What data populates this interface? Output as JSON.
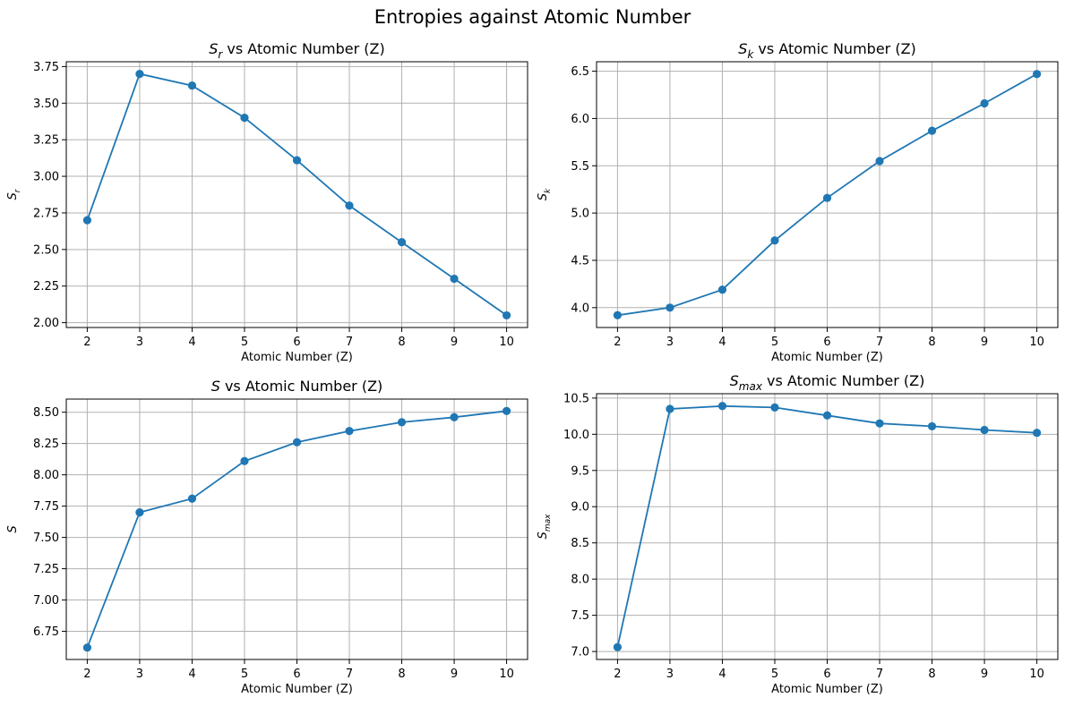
{
  "figure": {
    "title": "Entropies against Atomic Number"
  },
  "colors": {
    "series": "#1f77b4",
    "grid": "#b0b0b0"
  },
  "chart_data": [
    {
      "type": "line",
      "title_sym": "S",
      "title_sub": "r",
      "title_rest": " vs Atomic Number (Z)",
      "xlabel": "Atomic Number (Z)",
      "ylabel_sym": "S",
      "ylabel_sub": "r",
      "x": [
        2,
        3,
        4,
        5,
        6,
        7,
        8,
        9,
        10
      ],
      "y": [
        2.7,
        3.7,
        3.62,
        3.4,
        3.11,
        2.8,
        2.55,
        2.3,
        2.05
      ],
      "xticks": [
        2,
        3,
        4,
        5,
        6,
        7,
        8,
        9,
        10
      ],
      "xticklabels": [
        "2",
        "3",
        "4",
        "5",
        "6",
        "7",
        "8",
        "9",
        "10"
      ],
      "yticks": [
        2.0,
        2.25,
        2.5,
        2.75,
        3.0,
        3.25,
        3.5,
        3.75
      ],
      "yticklabels": [
        "2.00",
        "2.25",
        "2.50",
        "2.75",
        "3.00",
        "3.25",
        "3.50",
        "3.75"
      ],
      "xlim": [
        1.6,
        10.4
      ],
      "ylim": [
        1.967,
        3.783
      ],
      "grid": true,
      "marker": "circle"
    },
    {
      "type": "line",
      "title_sym": "S",
      "title_sub": "k",
      "title_rest": " vs Atomic Number (Z)",
      "xlabel": "Atomic Number (Z)",
      "ylabel_sym": "S",
      "ylabel_sub": "k",
      "x": [
        2,
        3,
        4,
        5,
        6,
        7,
        8,
        9,
        10
      ],
      "y": [
        3.92,
        4.0,
        4.19,
        4.71,
        5.16,
        5.55,
        5.87,
        6.16,
        6.47
      ],
      "xticks": [
        2,
        3,
        4,
        5,
        6,
        7,
        8,
        9,
        10
      ],
      "xticklabels": [
        "2",
        "3",
        "4",
        "5",
        "6",
        "7",
        "8",
        "9",
        "10"
      ],
      "yticks": [
        4.0,
        4.5,
        5.0,
        5.5,
        6.0,
        6.5
      ],
      "yticklabels": [
        "4.0",
        "4.5",
        "5.0",
        "5.5",
        "6.0",
        "6.5"
      ],
      "xlim": [
        1.6,
        10.4
      ],
      "ylim": [
        3.79,
        6.6
      ],
      "grid": true,
      "marker": "circle"
    },
    {
      "type": "line",
      "title_sym": "S",
      "title_sub": "",
      "title_rest": " vs Atomic Number (Z)",
      "xlabel": "Atomic Number (Z)",
      "ylabel_sym": "S",
      "ylabel_sub": "",
      "x": [
        2,
        3,
        4,
        5,
        6,
        7,
        8,
        9,
        10
      ],
      "y": [
        6.62,
        7.7,
        7.81,
        8.11,
        8.26,
        8.35,
        8.42,
        8.46,
        8.51
      ],
      "xticks": [
        2,
        3,
        4,
        5,
        6,
        7,
        8,
        9,
        10
      ],
      "xticklabels": [
        "2",
        "3",
        "4",
        "5",
        "6",
        "7",
        "8",
        "9",
        "10"
      ],
      "yticks": [
        6.75,
        7.0,
        7.25,
        7.5,
        7.75,
        8.0,
        8.25,
        8.5
      ],
      "yticklabels": [
        "6.75",
        "7.00",
        "7.25",
        "7.50",
        "7.75",
        "8.00",
        "8.25",
        "8.50"
      ],
      "xlim": [
        1.6,
        10.4
      ],
      "ylim": [
        6.525,
        8.605
      ],
      "grid": true,
      "marker": "circle"
    },
    {
      "type": "line",
      "title_sym": "S",
      "title_sub": "max",
      "title_rest": " vs Atomic Number (Z)",
      "xlabel": "Atomic Number (Z)",
      "ylabel_sym": "S",
      "ylabel_sub": "max",
      "x": [
        2,
        3,
        4,
        5,
        6,
        7,
        8,
        9,
        10
      ],
      "y": [
        7.06,
        10.35,
        10.39,
        10.37,
        10.26,
        10.15,
        10.11,
        10.06,
        10.02
      ],
      "xticks": [
        2,
        3,
        4,
        5,
        6,
        7,
        8,
        9,
        10
      ],
      "xticklabels": [
        "2",
        "3",
        "4",
        "5",
        "6",
        "7",
        "8",
        "9",
        "10"
      ],
      "yticks": [
        7.0,
        7.5,
        8.0,
        8.5,
        9.0,
        9.5,
        10.0,
        10.5
      ],
      "yticklabels": [
        "7.0",
        "7.5",
        "8.0",
        "8.5",
        "9.0",
        "9.5",
        "10.0",
        "10.5"
      ],
      "xlim": [
        1.6,
        10.4
      ],
      "ylim": [
        6.89,
        10.56
      ],
      "grid": true,
      "marker": "circle"
    }
  ]
}
